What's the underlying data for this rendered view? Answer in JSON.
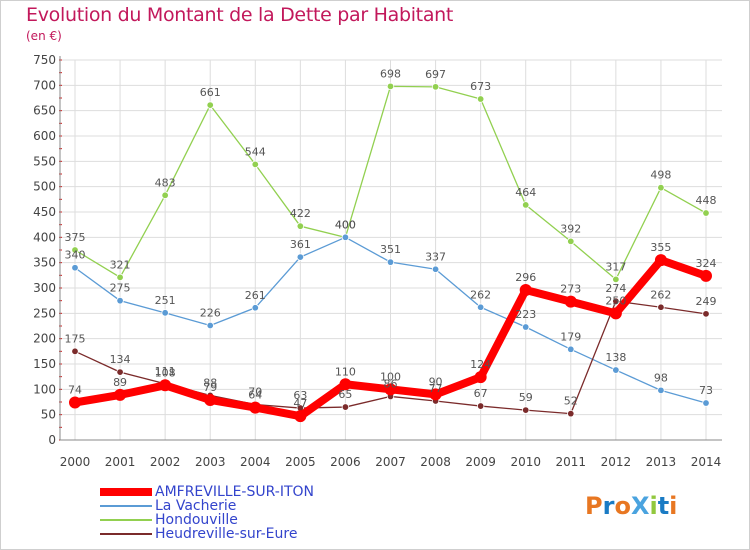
{
  "title": "Evolution du Montant de la Dette par Habitant",
  "subtitle": "(en €)",
  "logo": "ProXiti",
  "chart_data": {
    "type": "line",
    "x": [
      "2000",
      "2001",
      "2002",
      "2003",
      "2004",
      "2005",
      "2006",
      "2007",
      "2008",
      "2009",
      "2010",
      "2011",
      "2012",
      "2013",
      "2014"
    ],
    "ylim": [
      0,
      750
    ],
    "yticks": [
      0,
      50,
      100,
      150,
      200,
      250,
      300,
      350,
      400,
      450,
      500,
      550,
      600,
      650,
      700,
      750
    ],
    "grid": true,
    "legend_position": "bottom-left",
    "series": [
      {
        "name": "AMFREVILLE-SUR-ITON",
        "color": "#ff0000",
        "values": [
          74,
          89,
          108,
          79,
          64,
          47,
          110,
          100,
          90,
          124,
          296,
          273,
          250,
          355,
          324
        ]
      },
      {
        "name": "La Vacherie",
        "color": "#5b9bd5",
        "values": [
          340,
          275,
          251,
          226,
          261,
          361,
          400,
          351,
          337,
          262,
          223,
          179,
          138,
          98,
          73
        ]
      },
      {
        "name": "Hondouville",
        "color": "#92d050",
        "values": [
          375,
          321,
          483,
          661,
          544,
          422,
          400,
          698,
          697,
          673,
          464,
          392,
          317,
          498,
          448
        ]
      },
      {
        "name": "Heudreville-sur-Eure",
        "color": "#7b2b2b",
        "values": [
          175,
          134,
          111,
          88,
          70,
          63,
          65,
          86,
          77,
          67,
          59,
          52,
          274,
          262,
          249
        ]
      }
    ]
  }
}
